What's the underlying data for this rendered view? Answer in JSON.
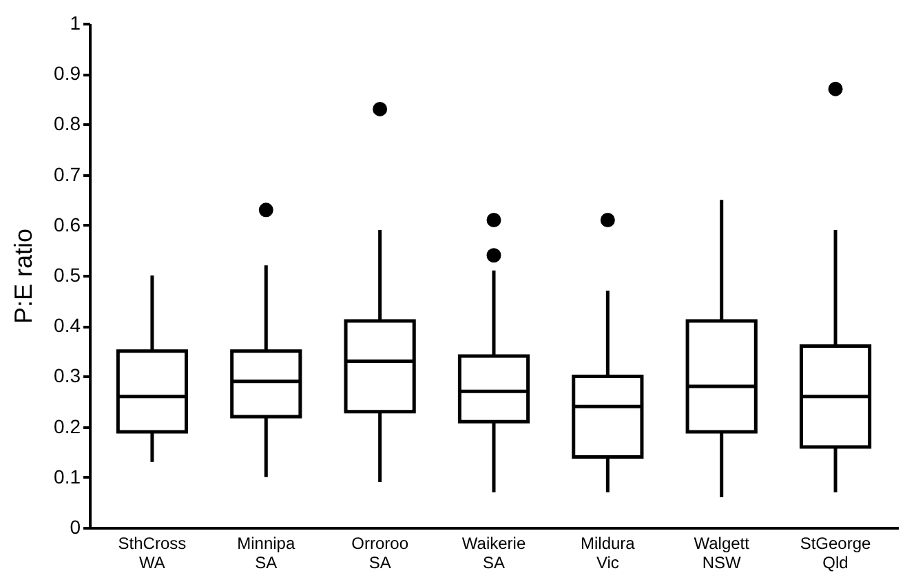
{
  "chart_data": {
    "type": "box",
    "ylabel": "P:E ratio",
    "categories": [
      "SthCross\nWA",
      "Minnipa\nSA",
      "Orroroo\nSA",
      "Waikerie\nSA",
      "Mildura\nVic",
      "Walgett\nNSW",
      "StGeorge\nQld"
    ],
    "boxes": [
      {
        "low": 0.13,
        "q1": 0.19,
        "median": 0.26,
        "q3": 0.35,
        "high": 0.5
      },
      {
        "low": 0.1,
        "q1": 0.22,
        "median": 0.29,
        "q3": 0.35,
        "high": 0.52,
        "outliers": [
          0.63
        ]
      },
      {
        "low": 0.09,
        "q1": 0.23,
        "median": 0.33,
        "q3": 0.41,
        "high": 0.59,
        "outliers": [
          0.83
        ]
      },
      {
        "low": 0.07,
        "q1": 0.21,
        "median": 0.27,
        "q3": 0.34,
        "high": 0.51,
        "outliers": [
          0.54,
          0.61
        ]
      },
      {
        "low": 0.07,
        "q1": 0.14,
        "median": 0.24,
        "q3": 0.3,
        "high": 0.47,
        "outliers": [
          0.61
        ]
      },
      {
        "low": 0.06,
        "q1": 0.19,
        "median": 0.28,
        "q3": 0.41,
        "high": 0.65
      },
      {
        "low": 0.07,
        "q1": 0.16,
        "median": 0.26,
        "q3": 0.36,
        "high": 0.59,
        "outliers": [
          0.87
        ]
      }
    ],
    "color": "#000000",
    "ylim": [
      0,
      1
    ],
    "yticks": [
      0,
      0.1,
      0.2,
      0.3,
      0.4,
      0.5,
      0.6,
      0.7,
      0.8,
      0.9,
      1
    ],
    "grid": false
  }
}
